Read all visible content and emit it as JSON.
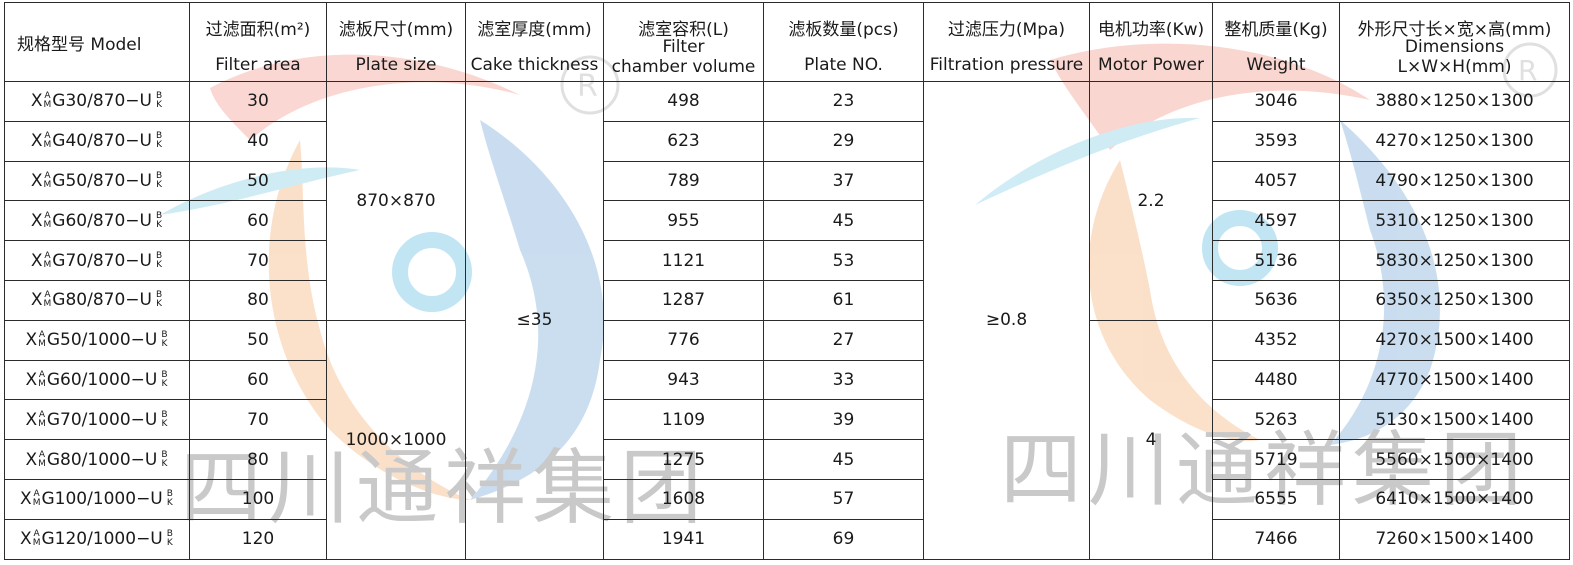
{
  "watermark": {
    "text_left": "四川通祥集团",
    "text_right": "四川通祥集团",
    "registered_mark": "®"
  },
  "headers": {
    "model": "规格型号  Model",
    "filter_area": {
      "cn": "过滤面积(m²)",
      "en": "Filter area"
    },
    "plate_size": {
      "cn": "滤板尺寸(mm)",
      "en": "Plate size"
    },
    "cake_thickness": {
      "cn": "滤室厚度(mm)",
      "en": "Cake thickness"
    },
    "chamber_volume": {
      "cn": "滤室容积(L)",
      "en_1": "Filter",
      "en_2": "chamber volume"
    },
    "plate_no": {
      "cn": "滤板数量(pcs)",
      "en": "Plate NO."
    },
    "filtration_pressure": {
      "cn": "过滤压力(Mpa)",
      "en": "Filtration pressure"
    },
    "motor_power": {
      "cn": "电机功率(Kw)",
      "en": "Motor Power"
    },
    "weight": {
      "cn": "整机质量(Kg)",
      "en": "Weight"
    },
    "dimensions": {
      "cn": "外形尺寸长×宽×高(mm)",
      "en_1": "Dimensions",
      "en_2": "L×W×H(mm)"
    }
  },
  "merged": {
    "plate_size_870": "870×870",
    "plate_size_1000": "1000×1000",
    "cake_thickness": "≤35",
    "filtration_pressure": "≥0.8",
    "motor_power_1": "2.2",
    "motor_power_2": "4"
  },
  "rows": [
    {
      "model": {
        "pre": "X",
        "top": "A",
        "bot": "M",
        "main": "G30/870−U",
        "rtop": "B",
        "rbot": "K"
      },
      "area": "30",
      "volume": "498",
      "plates": "23",
      "weight": "3046",
      "dims": "3880×1250×1300"
    },
    {
      "model": {
        "pre": "X",
        "top": "A",
        "bot": "M",
        "main": "G40/870−U",
        "rtop": "B",
        "rbot": "K"
      },
      "area": "40",
      "volume": "623",
      "plates": "29",
      "weight": "3593",
      "dims": "4270×1250×1300"
    },
    {
      "model": {
        "pre": "X",
        "top": "A",
        "bot": "M",
        "main": "G50/870−U",
        "rtop": "B",
        "rbot": "K"
      },
      "area": "50",
      "volume": "789",
      "plates": "37",
      "weight": "4057",
      "dims": "4790×1250×1300"
    },
    {
      "model": {
        "pre": "X",
        "top": "A",
        "bot": "M",
        "main": "G60/870−U",
        "rtop": "B",
        "rbot": "K"
      },
      "area": "60",
      "volume": "955",
      "plates": "45",
      "weight": "4597",
      "dims": "5310×1250×1300"
    },
    {
      "model": {
        "pre": "X",
        "top": "A",
        "bot": "M",
        "main": "G70/870−U",
        "rtop": "B",
        "rbot": "K"
      },
      "area": "70",
      "volume": "1121",
      "plates": "53",
      "weight": "5136",
      "dims": "5830×1250×1300"
    },
    {
      "model": {
        "pre": "X",
        "top": "A",
        "bot": "M",
        "main": "G80/870−U",
        "rtop": "B",
        "rbot": "K"
      },
      "area": "80",
      "volume": "1287",
      "plates": "61",
      "weight": "5636",
      "dims": "6350×1250×1300"
    },
    {
      "model": {
        "pre": "X",
        "top": "A",
        "bot": "M",
        "main": "G50/1000−U",
        "rtop": "B",
        "rbot": "K"
      },
      "area": "50",
      "volume": "776",
      "plates": "27",
      "weight": "4352",
      "dims": "4270×1500×1400"
    },
    {
      "model": {
        "pre": "X",
        "top": "A",
        "bot": "M",
        "main": "G60/1000−U",
        "rtop": "B",
        "rbot": "K"
      },
      "area": "60",
      "volume": "943",
      "plates": "33",
      "weight": "4480",
      "dims": "4770×1500×1400"
    },
    {
      "model": {
        "pre": "X",
        "top": "A",
        "bot": "M",
        "main": "G70/1000−U",
        "rtop": "B",
        "rbot": "K"
      },
      "area": "70",
      "volume": "1109",
      "plates": "39",
      "weight": "5263",
      "dims": "5130×1500×1400"
    },
    {
      "model": {
        "pre": "X",
        "top": "A",
        "bot": "M",
        "main": "G80/1000−U",
        "rtop": "B",
        "rbot": "K"
      },
      "area": "80",
      "volume": "1275",
      "plates": "45",
      "weight": "5719",
      "dims": "5560×1500×1400"
    },
    {
      "model": {
        "pre": "X",
        "top": "A",
        "bot": "M",
        "main": "G100/1000−U",
        "rtop": "B",
        "rbot": "K"
      },
      "area": "100",
      "volume": "1608",
      "plates": "57",
      "weight": "6555",
      "dims": "6410×1500×1400"
    },
    {
      "model": {
        "pre": "X",
        "top": "A",
        "bot": "M",
        "main": "G120/1000−U",
        "rtop": "B",
        "rbot": "K"
      },
      "area": "120",
      "volume": "1941",
      "plates": "69",
      "weight": "7466",
      "dims": "7260×1500×1400"
    }
  ]
}
